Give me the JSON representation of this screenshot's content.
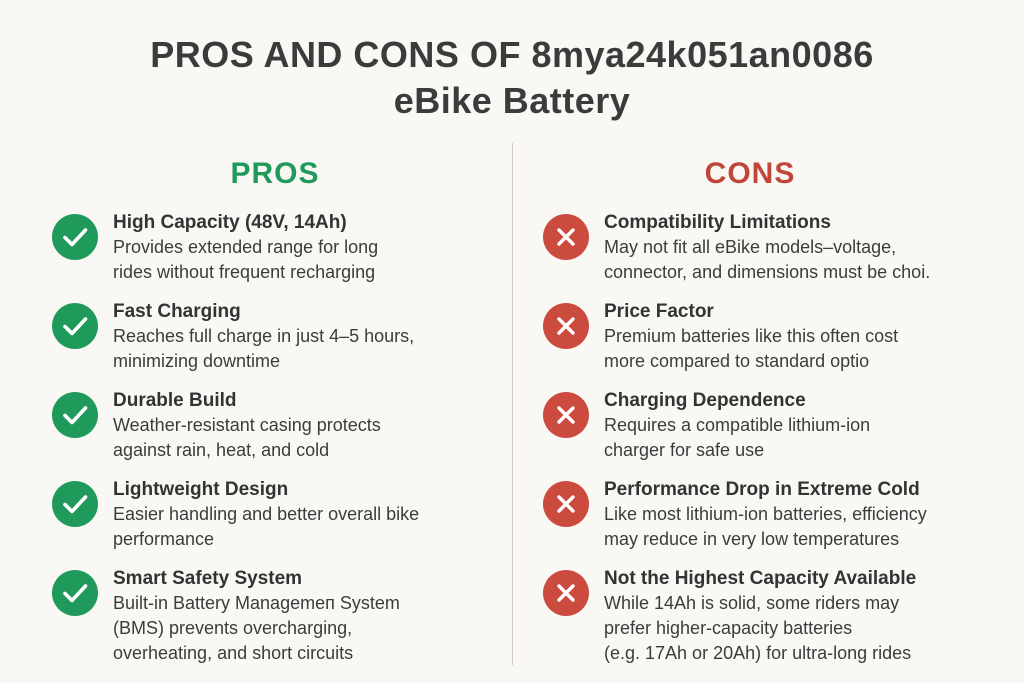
{
  "title": {
    "line1": "PROS AND CONS OF 8mya24k051an0086",
    "line2": "eBike Battery"
  },
  "pros": {
    "heading": "PROS",
    "color": "#1f9a5a",
    "items": [
      {
        "title": "High Capacity (48V, 14Ah)",
        "lines": [
          "Provides extended range for long",
          "rides without frequent recharging"
        ],
        "icon": "check-icon"
      },
      {
        "title": "Fast Charging",
        "lines": [
          "Reaches full charge in just 4–5 hours,",
          "minimizing downtime"
        ],
        "icon": "check-icon"
      },
      {
        "title": "Durable Build",
        "lines": [
          "Weather-resistant casing protects",
          "against rain, heat, and cold"
        ],
        "icon": "check-icon"
      },
      {
        "title": "Lightweight Design",
        "lines": [
          "Easier handling and better overall bike",
          "performance"
        ],
        "icon": "check-icon"
      },
      {
        "title": "Smart Safety System",
        "lines": [
          "Built-in Battery Managemeп System",
          "(BMS) prevents overcharging,",
          "overheating, and short circuits"
        ],
        "icon": "check-icon"
      }
    ]
  },
  "cons": {
    "heading": "CONS",
    "color": "#c0463a",
    "items": [
      {
        "title": "Compatibility Limitations",
        "lines": [
          "May not fit all eBike models–voltage,",
          "connector, and dimensions must be choi."
        ],
        "icon": "x-icon"
      },
      {
        "title": "Price Factor",
        "lines": [
          "Premium batteries like this often cost",
          "more compared to standard optio"
        ],
        "icon": "x-icon"
      },
      {
        "title": "Charging Dependence",
        "lines": [
          "Requires a compatible lithium-ion",
          "charger for safe use"
        ],
        "icon": "x-icon"
      },
      {
        "title": "Performance Drop in Extreme Cold",
        "lines": [
          "Like most lithium-ion batteries, efficiency",
          "may reduce in very low temperatures"
        ],
        "icon": "x-icon"
      },
      {
        "title": "Not the Highest Capacity Available",
        "lines": [
          "While 14Ah is solid, some riders may",
          "prefer higher-capacity batteries",
          "(e.g. 17Ah or 20Ah) for ultra-long rides"
        ],
        "icon": "x-icon"
      }
    ]
  }
}
